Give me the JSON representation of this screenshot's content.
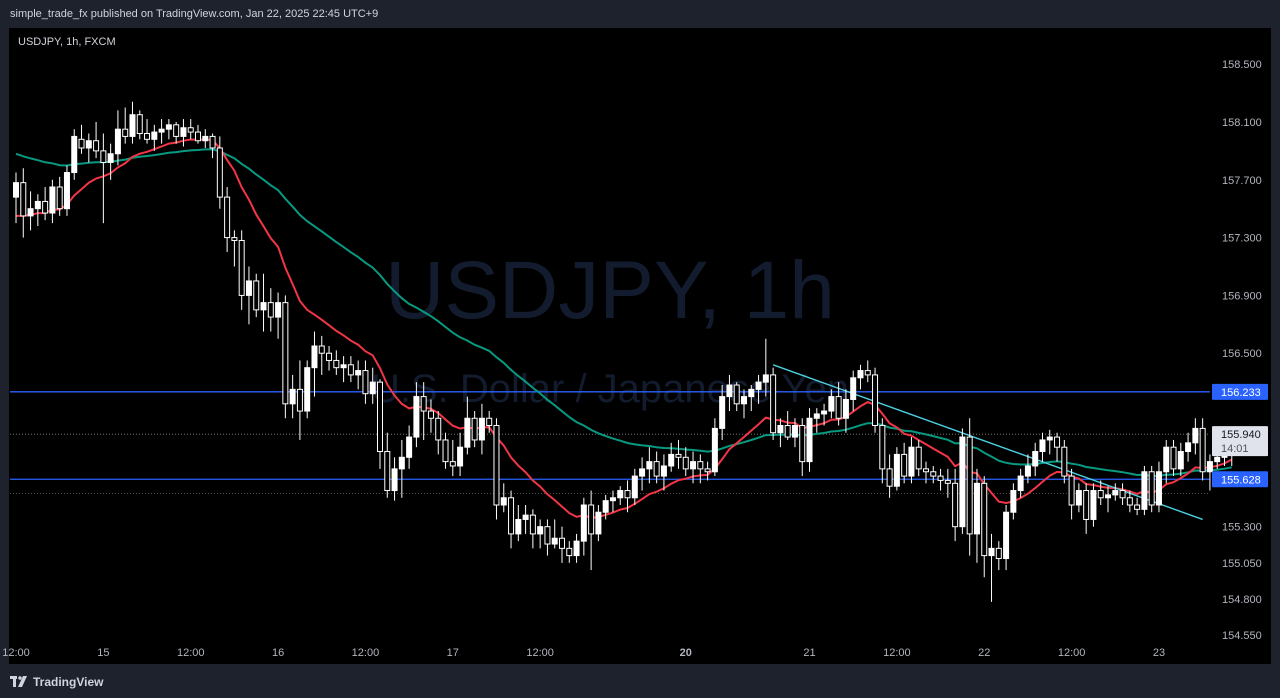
{
  "header": {
    "published": "simple_trade_fx published on TradingView.com, Jan 22, 2025 22:45 UTC+9"
  },
  "footer": {
    "brand": "TradingView"
  },
  "chart_data": {
    "type": "candlestick",
    "symbol_label": "USDJPY, 1h, FXCM",
    "watermark_title": "USDJPY, 1h",
    "watermark_subtitle": "U.S. Dollar / Japanese Yen",
    "y_range": [
      154.35,
      158.75
    ],
    "y_ticks": [
      "158.500",
      "158.100",
      "157.700",
      "157.300",
      "156.900",
      "156.500",
      "155.300",
      "155.050",
      "154.800",
      "154.550"
    ],
    "x_ticks": [
      {
        "label": "12:00",
        "i": 0
      },
      {
        "label": "15",
        "i": 12
      },
      {
        "label": "12:00",
        "i": 24
      },
      {
        "label": "16",
        "i": 36
      },
      {
        "label": "12:00",
        "i": 48
      },
      {
        "label": "17",
        "i": 60
      },
      {
        "label": "12:00",
        "i": 72
      },
      {
        "label": "20",
        "i": 92,
        "bold": true
      },
      {
        "label": "21",
        "i": 109
      },
      {
        "label": "12:00",
        "i": 121
      },
      {
        "label": "22",
        "i": 133
      },
      {
        "label": "12:00",
        "i": 145
      },
      {
        "label": "23",
        "i": 157
      }
    ],
    "horizontal_levels": [
      {
        "value": 156.233,
        "label": "156.233"
      },
      {
        "value": 155.628,
        "label": "155.628"
      }
    ],
    "last_price": {
      "value": 155.94,
      "label": "155.940",
      "countdown": "14:01"
    },
    "trendline": [
      {
        "i": 104,
        "price": 156.42
      },
      {
        "i": 163,
        "price": 155.35
      }
    ],
    "colors": {
      "up": "#ffffff",
      "down": "#ffffff",
      "ma_fast": "#f23645",
      "ma_slow": "#089981",
      "levels": "#2962ff",
      "trendline": "#4dd0e1",
      "background": "#000000"
    },
    "candles": [
      [
        157.58,
        157.75,
        157.4,
        157.68
      ],
      [
        157.68,
        157.78,
        157.3,
        157.45
      ],
      [
        157.45,
        157.62,
        157.35,
        157.5
      ],
      [
        157.5,
        157.6,
        157.38,
        157.55
      ],
      [
        157.55,
        157.65,
        157.42,
        157.47
      ],
      [
        157.47,
        157.7,
        157.4,
        157.65
      ],
      [
        157.65,
        157.72,
        157.45,
        157.5
      ],
      [
        157.5,
        157.8,
        157.45,
        157.75
      ],
      [
        157.75,
        158.05,
        157.7,
        158.0
      ],
      [
        157.98,
        158.08,
        157.88,
        157.92
      ],
      [
        157.92,
        158.02,
        157.82,
        157.97
      ],
      [
        157.97,
        158.1,
        157.85,
        157.9
      ],
      [
        157.9,
        158.02,
        157.4,
        157.82
      ],
      [
        157.82,
        157.95,
        157.7,
        157.88
      ],
      [
        157.88,
        158.18,
        157.8,
        158.05
      ],
      [
        158.05,
        158.2,
        157.95,
        158.0
      ],
      [
        158.0,
        158.24,
        157.95,
        158.15
      ],
      [
        158.15,
        158.18,
        157.98,
        158.02
      ],
      [
        158.02,
        158.12,
        157.95,
        157.98
      ],
      [
        157.98,
        158.08,
        157.9,
        158.03
      ],
      [
        158.03,
        158.12,
        157.95,
        158.05
      ],
      [
        158.05,
        158.12,
        157.98,
        158.08
      ],
      [
        158.08,
        158.1,
        157.95,
        158.0
      ],
      [
        158.0,
        158.12,
        157.93,
        158.06
      ],
      [
        158.06,
        158.12,
        157.98,
        158.03
      ],
      [
        158.03,
        158.08,
        157.95,
        157.97
      ],
      [
        157.97,
        158.05,
        157.92,
        158.0
      ],
      [
        158.0,
        158.02,
        157.85,
        157.92
      ],
      [
        157.92,
        158.0,
        157.5,
        157.58
      ],
      [
        157.58,
        157.65,
        157.2,
        157.3
      ],
      [
        157.3,
        157.35,
        157.1,
        157.28
      ],
      [
        157.28,
        157.35,
        156.8,
        156.9
      ],
      [
        156.9,
        157.1,
        156.7,
        157.0
      ],
      [
        157.0,
        157.05,
        156.75,
        156.8
      ],
      [
        156.8,
        157.05,
        156.65,
        156.85
      ],
      [
        156.85,
        156.95,
        156.65,
        156.75
      ],
      [
        156.75,
        156.92,
        156.6,
        156.85
      ],
      [
        156.85,
        156.9,
        156.05,
        156.15
      ],
      [
        156.15,
        156.35,
        156.05,
        156.25
      ],
      [
        156.25,
        156.45,
        155.9,
        156.1
      ],
      [
        156.1,
        156.45,
        156.05,
        156.4
      ],
      [
        156.4,
        156.65,
        156.2,
        156.55
      ],
      [
        156.55,
        156.62,
        156.35,
        156.5
      ],
      [
        156.5,
        156.55,
        156.38,
        156.45
      ],
      [
        156.45,
        156.52,
        156.35,
        156.4
      ],
      [
        156.4,
        156.48,
        156.3,
        156.42
      ],
      [
        156.42,
        156.48,
        156.3,
        156.35
      ],
      [
        156.35,
        156.45,
        156.25,
        156.38
      ],
      [
        156.38,
        156.45,
        156.15,
        156.22
      ],
      [
        156.22,
        156.4,
        156.15,
        156.3
      ],
      [
        156.3,
        156.32,
        155.7,
        155.82
      ],
      [
        155.82,
        155.95,
        155.5,
        155.55
      ],
      [
        155.55,
        155.78,
        155.48,
        155.7
      ],
      [
        155.7,
        155.9,
        155.5,
        155.78
      ],
      [
        155.78,
        156.0,
        155.7,
        155.92
      ],
      [
        155.92,
        156.3,
        155.85,
        156.2
      ],
      [
        156.2,
        156.3,
        155.9,
        156.1
      ],
      [
        156.1,
        156.18,
        155.95,
        156.05
      ],
      [
        156.05,
        156.1,
        155.8,
        155.9
      ],
      [
        155.9,
        155.95,
        155.7,
        155.75
      ],
      [
        155.75,
        155.9,
        155.65,
        155.72
      ],
      [
        155.72,
        155.95,
        155.65,
        155.85
      ],
      [
        155.85,
        156.2,
        155.8,
        156.05
      ],
      [
        156.05,
        156.1,
        155.85,
        155.9
      ],
      [
        155.9,
        156.15,
        155.8,
        156.05
      ],
      [
        156.05,
        156.1,
        155.95,
        156.0
      ],
      [
        156.0,
        156.05,
        155.35,
        155.45
      ],
      [
        155.45,
        155.6,
        155.4,
        155.5
      ],
      [
        155.5,
        155.55,
        155.15,
        155.25
      ],
      [
        155.25,
        155.45,
        155.2,
        155.35
      ],
      [
        155.35,
        155.45,
        155.25,
        155.38
      ],
      [
        155.38,
        155.42,
        155.15,
        155.25
      ],
      [
        155.25,
        155.35,
        155.15,
        155.3
      ],
      [
        155.3,
        155.35,
        155.1,
        155.18
      ],
      [
        155.18,
        155.35,
        155.15,
        155.22
      ],
      [
        155.22,
        155.3,
        155.05,
        155.15
      ],
      [
        155.15,
        155.2,
        155.05,
        155.1
      ],
      [
        155.1,
        155.25,
        155.05,
        155.2
      ],
      [
        155.2,
        155.5,
        155.1,
        155.45
      ],
      [
        155.45,
        155.55,
        155.0,
        155.25
      ],
      [
        155.25,
        155.45,
        155.2,
        155.4
      ],
      [
        155.4,
        155.52,
        155.35,
        155.48
      ],
      [
        155.48,
        155.55,
        155.4,
        155.5
      ],
      [
        155.5,
        155.58,
        155.45,
        155.55
      ],
      [
        155.55,
        155.62,
        155.4,
        155.5
      ],
      [
        155.5,
        155.7,
        155.45,
        155.65
      ],
      [
        155.65,
        155.78,
        155.55,
        155.7
      ],
      [
        155.7,
        155.85,
        155.6,
        155.75
      ],
      [
        155.75,
        155.82,
        155.6,
        155.65
      ],
      [
        155.65,
        155.8,
        155.55,
        155.72
      ],
      [
        155.72,
        155.88,
        155.68,
        155.8
      ],
      [
        155.8,
        155.9,
        155.7,
        155.78
      ],
      [
        155.78,
        155.85,
        155.65,
        155.7
      ],
      [
        155.7,
        155.82,
        155.6,
        155.75
      ],
      [
        155.75,
        155.8,
        155.6,
        155.7
      ],
      [
        155.7,
        155.75,
        155.62,
        155.68
      ],
      [
        155.68,
        156.05,
        155.65,
        155.98
      ],
      [
        155.98,
        156.28,
        155.9,
        156.2
      ],
      [
        156.2,
        156.35,
        156.1,
        156.28
      ],
      [
        156.28,
        156.3,
        156.1,
        156.15
      ],
      [
        156.15,
        156.25,
        156.05,
        156.2
      ],
      [
        156.2,
        156.28,
        156.1,
        156.25
      ],
      [
        156.25,
        156.35,
        156.15,
        156.3
      ],
      [
        156.3,
        156.6,
        156.2,
        156.35
      ],
      [
        156.35,
        156.4,
        155.9,
        155.95
      ],
      [
        155.95,
        156.05,
        155.85,
        156.0
      ],
      [
        156.0,
        156.1,
        155.9,
        155.92
      ],
      [
        155.92,
        156.05,
        155.85,
        156.0
      ],
      [
        156.0,
        156.05,
        155.65,
        155.75
      ],
      [
        155.75,
        156.12,
        155.68,
        156.05
      ],
      [
        156.05,
        156.12,
        155.95,
        156.08
      ],
      [
        156.08,
        156.15,
        156.0,
        156.1
      ],
      [
        156.1,
        156.25,
        156.05,
        156.2
      ],
      [
        156.2,
        156.3,
        156.0,
        156.05
      ],
      [
        156.05,
        156.25,
        155.95,
        156.18
      ],
      [
        156.18,
        156.38,
        156.1,
        156.33
      ],
      [
        156.33,
        156.42,
        156.25,
        156.38
      ],
      [
        156.38,
        156.45,
        156.3,
        156.35
      ],
      [
        156.35,
        156.4,
        155.95,
        156.0
      ],
      [
        156.0,
        156.05,
        155.6,
        155.7
      ],
      [
        155.7,
        155.8,
        155.5,
        155.58
      ],
      [
        155.58,
        155.85,
        155.55,
        155.8
      ],
      [
        155.8,
        155.88,
        155.6,
        155.65
      ],
      [
        155.65,
        155.92,
        155.6,
        155.85
      ],
      [
        155.85,
        155.9,
        155.65,
        155.7
      ],
      [
        155.7,
        155.75,
        155.6,
        155.68
      ],
      [
        155.68,
        155.72,
        155.6,
        155.65
      ],
      [
        155.65,
        155.7,
        155.55,
        155.62
      ],
      [
        155.62,
        155.7,
        155.5,
        155.6
      ],
      [
        155.6,
        155.7,
        155.2,
        155.3
      ],
      [
        155.3,
        155.98,
        155.25,
        155.92
      ],
      [
        155.92,
        156.05,
        155.1,
        155.25
      ],
      [
        155.25,
        155.7,
        155.05,
        155.6
      ],
      [
        155.6,
        155.65,
        154.95,
        155.1
      ],
      [
        155.1,
        155.25,
        154.78,
        155.15
      ],
      [
        155.15,
        155.2,
        155.0,
        155.08
      ],
      [
        155.08,
        155.45,
        155.0,
        155.4
      ],
      [
        155.4,
        155.6,
        155.35,
        155.55
      ],
      [
        155.55,
        155.7,
        155.5,
        155.65
      ],
      [
        155.65,
        155.8,
        155.6,
        155.72
      ],
      [
        155.72,
        155.88,
        155.65,
        155.82
      ],
      [
        155.82,
        155.95,
        155.75,
        155.9
      ],
      [
        155.9,
        155.97,
        155.8,
        155.92
      ],
      [
        155.92,
        155.95,
        155.75,
        155.85
      ],
      [
        155.85,
        155.9,
        155.6,
        155.65
      ],
      [
        155.65,
        155.7,
        155.35,
        155.45
      ],
      [
        155.45,
        155.6,
        155.4,
        155.55
      ],
      [
        155.55,
        155.6,
        155.25,
        155.35
      ],
      [
        155.35,
        155.6,
        155.3,
        155.55
      ],
      [
        155.55,
        155.62,
        155.45,
        155.5
      ],
      [
        155.5,
        155.58,
        155.4,
        155.52
      ],
      [
        155.52,
        155.6,
        155.48,
        155.55
      ],
      [
        155.55,
        155.6,
        155.45,
        155.5
      ],
      [
        155.5,
        155.55,
        155.4,
        155.45
      ],
      [
        155.45,
        155.5,
        155.38,
        155.42
      ],
      [
        155.42,
        155.72,
        155.38,
        155.68
      ],
      [
        155.68,
        155.72,
        155.4,
        155.45
      ],
      [
        155.45,
        155.75,
        155.4,
        155.68
      ],
      [
        155.68,
        155.9,
        155.6,
        155.85
      ],
      [
        155.85,
        155.9,
        155.65,
        155.7
      ],
      [
        155.7,
        155.88,
        155.65,
        155.82
      ],
      [
        155.82,
        155.95,
        155.75,
        155.88
      ],
      [
        155.88,
        156.05,
        155.8,
        155.98
      ],
      [
        155.98,
        156.05,
        155.62,
        155.68
      ],
      [
        155.68,
        155.8,
        155.55,
        155.75
      ],
      [
        155.75,
        155.82,
        155.7,
        155.78
      ],
      [
        155.78,
        155.88,
        155.72,
        155.85
      ],
      [
        155.85,
        155.98,
        155.72,
        155.94
      ]
    ]
  }
}
